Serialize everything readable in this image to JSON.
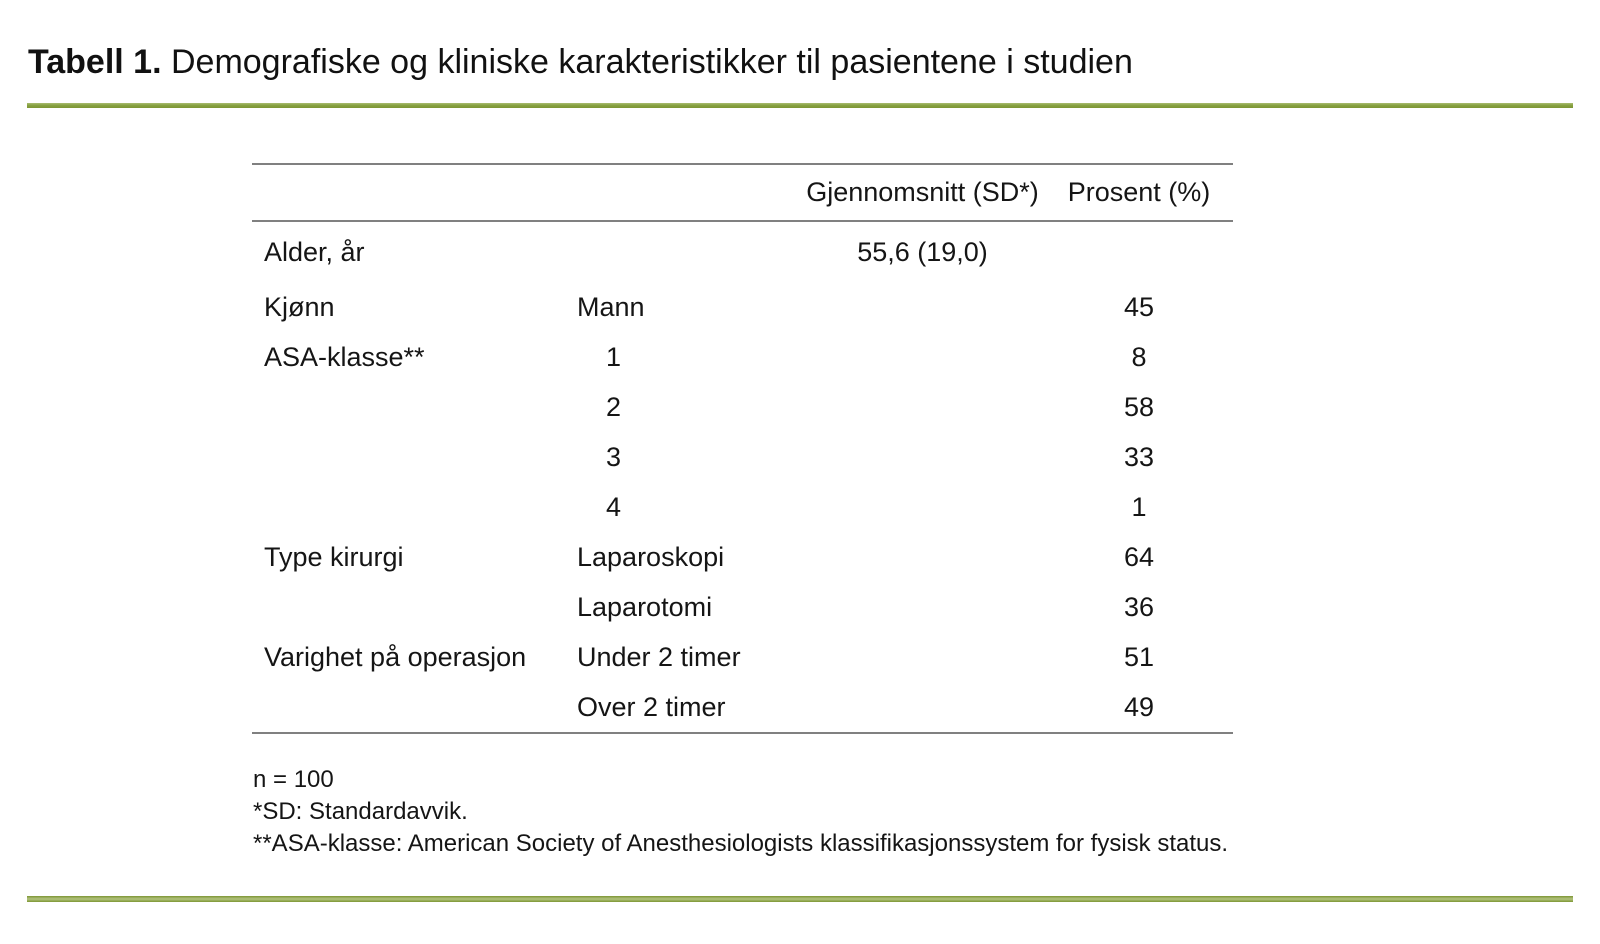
{
  "caption": {
    "label": "Tabell 1.",
    "text": "Demografiske og kliniske karakteristikker til pasientene i studien"
  },
  "table": {
    "headers": {
      "mean": "Gjennomsnitt (SD*)",
      "percent": "Prosent (%)"
    },
    "rows": [
      {
        "label": "Alder, år",
        "sub": "",
        "mean": "55,6 (19,0)",
        "percent": ""
      },
      {
        "label": "Kjønn",
        "sub": "Mann",
        "mean": "",
        "percent": "45"
      },
      {
        "label": "ASA-klasse**",
        "sub": "1",
        "mean": "",
        "percent": "8"
      },
      {
        "label": "",
        "sub": "2",
        "mean": "",
        "percent": "58"
      },
      {
        "label": "",
        "sub": "3",
        "mean": "",
        "percent": "33"
      },
      {
        "label": "",
        "sub": "4",
        "mean": "",
        "percent": "1"
      },
      {
        "label": "Type kirurgi",
        "sub": "Laparoskopi",
        "mean": "",
        "percent": "64"
      },
      {
        "label": "",
        "sub": "Laparotomi",
        "mean": "",
        "percent": "36"
      },
      {
        "label": "Varighet på operasjon",
        "sub": "Under 2 timer",
        "mean": "",
        "percent": "51"
      },
      {
        "label": "",
        "sub": "Over 2 timer",
        "mean": "",
        "percent": "49"
      }
    ]
  },
  "footnotes": [
    "n = 100",
    "*SD: Standardavvik.",
    "**ASA-klasse: American Society of Anesthesiologists klassifikasjonssystem for fysisk status."
  ],
  "colors": {
    "accent_green": "#87A140",
    "table_border": "#808080",
    "text": "#000000"
  }
}
